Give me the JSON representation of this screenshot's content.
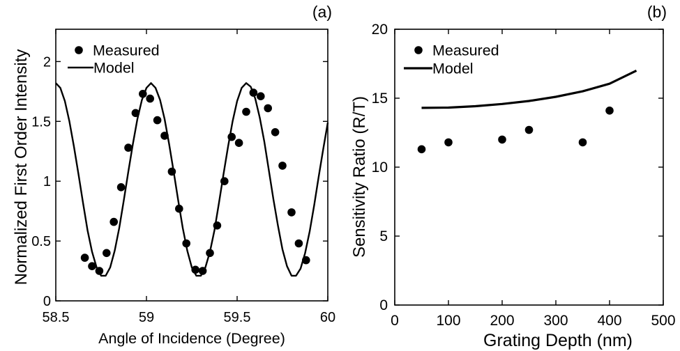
{
  "chart_data": [
    {
      "type": "scatter",
      "panel_label": "(a)",
      "xlabel": "Angle of Incidence (Degree)",
      "ylabel": "Normalized First Order Intensity",
      "xlim": [
        58.5,
        60
      ],
      "ylim": [
        0,
        2.27
      ],
      "x_ticks": [
        "58.5",
        "59",
        "59.5",
        "60"
      ],
      "y_ticks": [
        "0",
        "0.5",
        "1",
        "1.5",
        "2"
      ],
      "grid": false,
      "legend_position": "top-left",
      "series": [
        {
          "name": "Measured",
          "kind": "markers",
          "color": "#000000",
          "x": [
            58.66,
            58.7,
            58.74,
            58.78,
            58.82,
            58.86,
            58.9,
            58.94,
            58.98,
            59.02,
            59.06,
            59.1,
            59.14,
            59.18,
            59.22,
            59.27,
            59.31,
            59.35,
            59.39,
            59.43,
            59.47,
            59.51,
            59.55,
            59.59,
            59.63,
            59.67,
            59.71,
            59.75,
            59.8,
            59.84,
            59.88
          ],
          "y": [
            0.36,
            0.29,
            0.25,
            0.4,
            0.66,
            0.95,
            1.28,
            1.57,
            1.73,
            1.69,
            1.51,
            1.38,
            1.08,
            0.77,
            0.48,
            0.26,
            0.25,
            0.4,
            0.63,
            1.0,
            1.37,
            1.32,
            1.58,
            1.74,
            1.71,
            1.61,
            1.41,
            1.13,
            0.74,
            0.48,
            0.34
          ]
        },
        {
          "name": "Model",
          "kind": "line",
          "color": "#000000",
          "x": [
            58.5,
            58.525,
            58.55,
            58.575,
            58.6,
            58.625,
            58.65,
            58.675,
            58.7,
            58.725,
            58.75,
            58.775,
            58.8,
            58.825,
            58.85,
            58.875,
            58.9,
            58.925,
            58.95,
            58.975,
            59,
            59.025,
            59.05,
            59.075,
            59.1,
            59.125,
            59.15,
            59.175,
            59.2,
            59.225,
            59.25,
            59.275,
            59.3,
            59.325,
            59.35,
            59.375,
            59.4,
            59.425,
            59.45,
            59.475,
            59.5,
            59.525,
            59.55,
            59.575,
            59.6,
            59.625,
            59.65,
            59.675,
            59.7,
            59.725,
            59.75,
            59.775,
            59.8,
            59.825,
            59.85,
            59.875,
            59.9,
            59.925,
            59.95,
            59.975,
            60
          ],
          "y": [
            1.82,
            1.78,
            1.67,
            1.5,
            1.29,
            1.06,
            0.82,
            0.59,
            0.41,
            0.28,
            0.21,
            0.21,
            0.28,
            0.42,
            0.61,
            0.84,
            1.08,
            1.31,
            1.52,
            1.68,
            1.78,
            1.82,
            1.78,
            1.68,
            1.52,
            1.31,
            1.08,
            0.84,
            0.61,
            0.42,
            0.28,
            0.21,
            0.21,
            0.28,
            0.41,
            0.59,
            0.82,
            1.06,
            1.29,
            1.5,
            1.67,
            1.78,
            1.82,
            1.79,
            1.69,
            1.53,
            1.33,
            1.09,
            0.85,
            0.63,
            0.43,
            0.29,
            0.21,
            0.21,
            0.27,
            0.4,
            0.58,
            0.8,
            1.04,
            1.27,
            1.49
          ]
        }
      ]
    },
    {
      "type": "scatter",
      "panel_label": "(b)",
      "xlabel": "Grating Depth (nm)",
      "ylabel": "Sensitivity Ratio (R/T)",
      "xlim": [
        0,
        500
      ],
      "ylim": [
        0,
        20
      ],
      "x_ticks": [
        "0",
        "100",
        "200",
        "300",
        "400",
        "500"
      ],
      "y_ticks": [
        "0",
        "5",
        "10",
        "15",
        "20"
      ],
      "grid": false,
      "legend_position": "top-left",
      "series": [
        {
          "name": "Measured",
          "kind": "markers",
          "color": "#000000",
          "x": [
            50,
            100,
            200,
            250,
            350,
            400
          ],
          "y": [
            11.3,
            11.8,
            12.0,
            12.7,
            11.8,
            14.1
          ]
        },
        {
          "name": "Model",
          "kind": "line",
          "color": "#000000",
          "x": [
            50,
            100,
            150,
            200,
            250,
            300,
            350,
            400,
            450
          ],
          "y": [
            14.3,
            14.32,
            14.42,
            14.58,
            14.8,
            15.1,
            15.5,
            16.05,
            17.0
          ]
        }
      ]
    }
  ]
}
